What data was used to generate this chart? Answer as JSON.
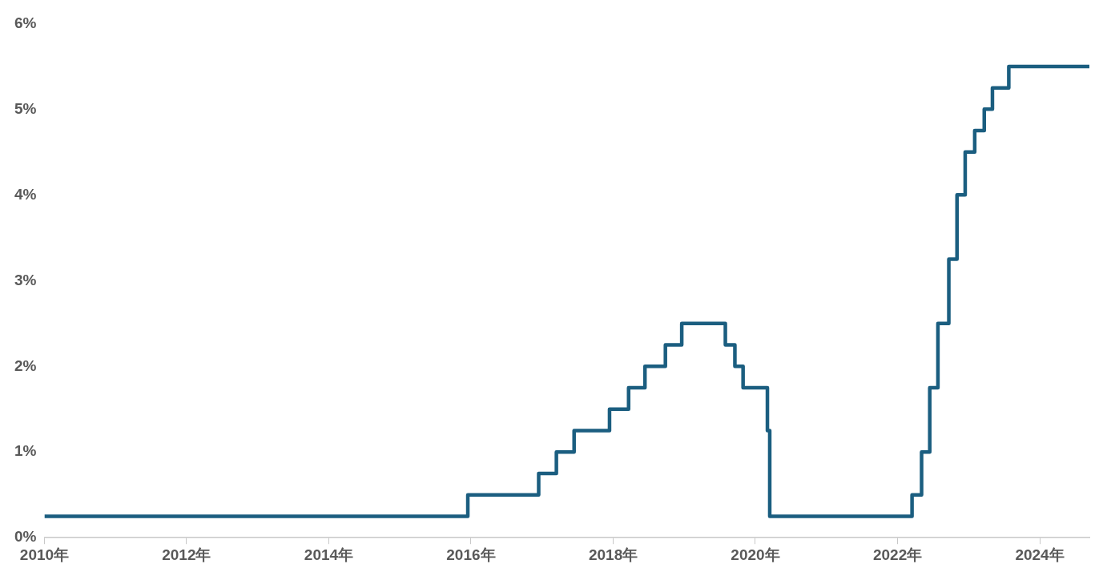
{
  "chart_data": {
    "type": "step",
    "x": [
      "2010-01-01",
      "2015-12-16",
      "2016-12-14",
      "2017-03-15",
      "2017-06-14",
      "2017-12-13",
      "2018-03-21",
      "2018-06-13",
      "2018-09-26",
      "2018-12-19",
      "2019-07-31",
      "2019-09-18",
      "2019-10-30",
      "2020-03-03",
      "2020-03-15",
      "2022-03-16",
      "2022-05-04",
      "2022-06-15",
      "2022-07-27",
      "2022-09-21",
      "2022-11-02",
      "2022-12-14",
      "2023-02-01",
      "2023-03-22",
      "2023-05-03",
      "2023-07-26",
      "2024-09-12"
    ],
    "series": [
      {
        "color": "#1b5e80",
        "values": [
          0.25,
          0.5,
          0.75,
          1.0,
          1.25,
          1.5,
          1.75,
          2.0,
          2.25,
          2.5,
          2.25,
          2.0,
          1.75,
          1.25,
          0.25,
          0.5,
          1.0,
          1.75,
          2.5,
          3.25,
          4.0,
          4.5,
          4.75,
          5.0,
          5.25,
          5.5,
          5.5
        ]
      }
    ],
    "xlim": [
      "2010-01-01",
      "2024-09-12"
    ],
    "xticks": [
      {
        "value": "2010-01-01",
        "label": "2010年"
      },
      {
        "value": "2012-01-01",
        "label": "2012年"
      },
      {
        "value": "2014-01-01",
        "label": "2014年"
      },
      {
        "value": "2016-01-01",
        "label": "2016年"
      },
      {
        "value": "2018-01-01",
        "label": "2018年"
      },
      {
        "value": "2020-01-01",
        "label": "2020年"
      },
      {
        "value": "2022-01-01",
        "label": "2022年"
      },
      {
        "value": "2024-01-01",
        "label": "2024年"
      }
    ],
    "ylim": [
      0,
      6
    ],
    "yticks": [
      {
        "value": 0,
        "label": "0%"
      },
      {
        "value": 1,
        "label": "1%"
      },
      {
        "value": 2,
        "label": "2%"
      },
      {
        "value": 3,
        "label": "3%"
      },
      {
        "value": 4,
        "label": "4%"
      },
      {
        "value": 5,
        "label": "5%"
      },
      {
        "value": 6,
        "label": "6%"
      }
    ],
    "grid": false,
    "legend": false
  }
}
